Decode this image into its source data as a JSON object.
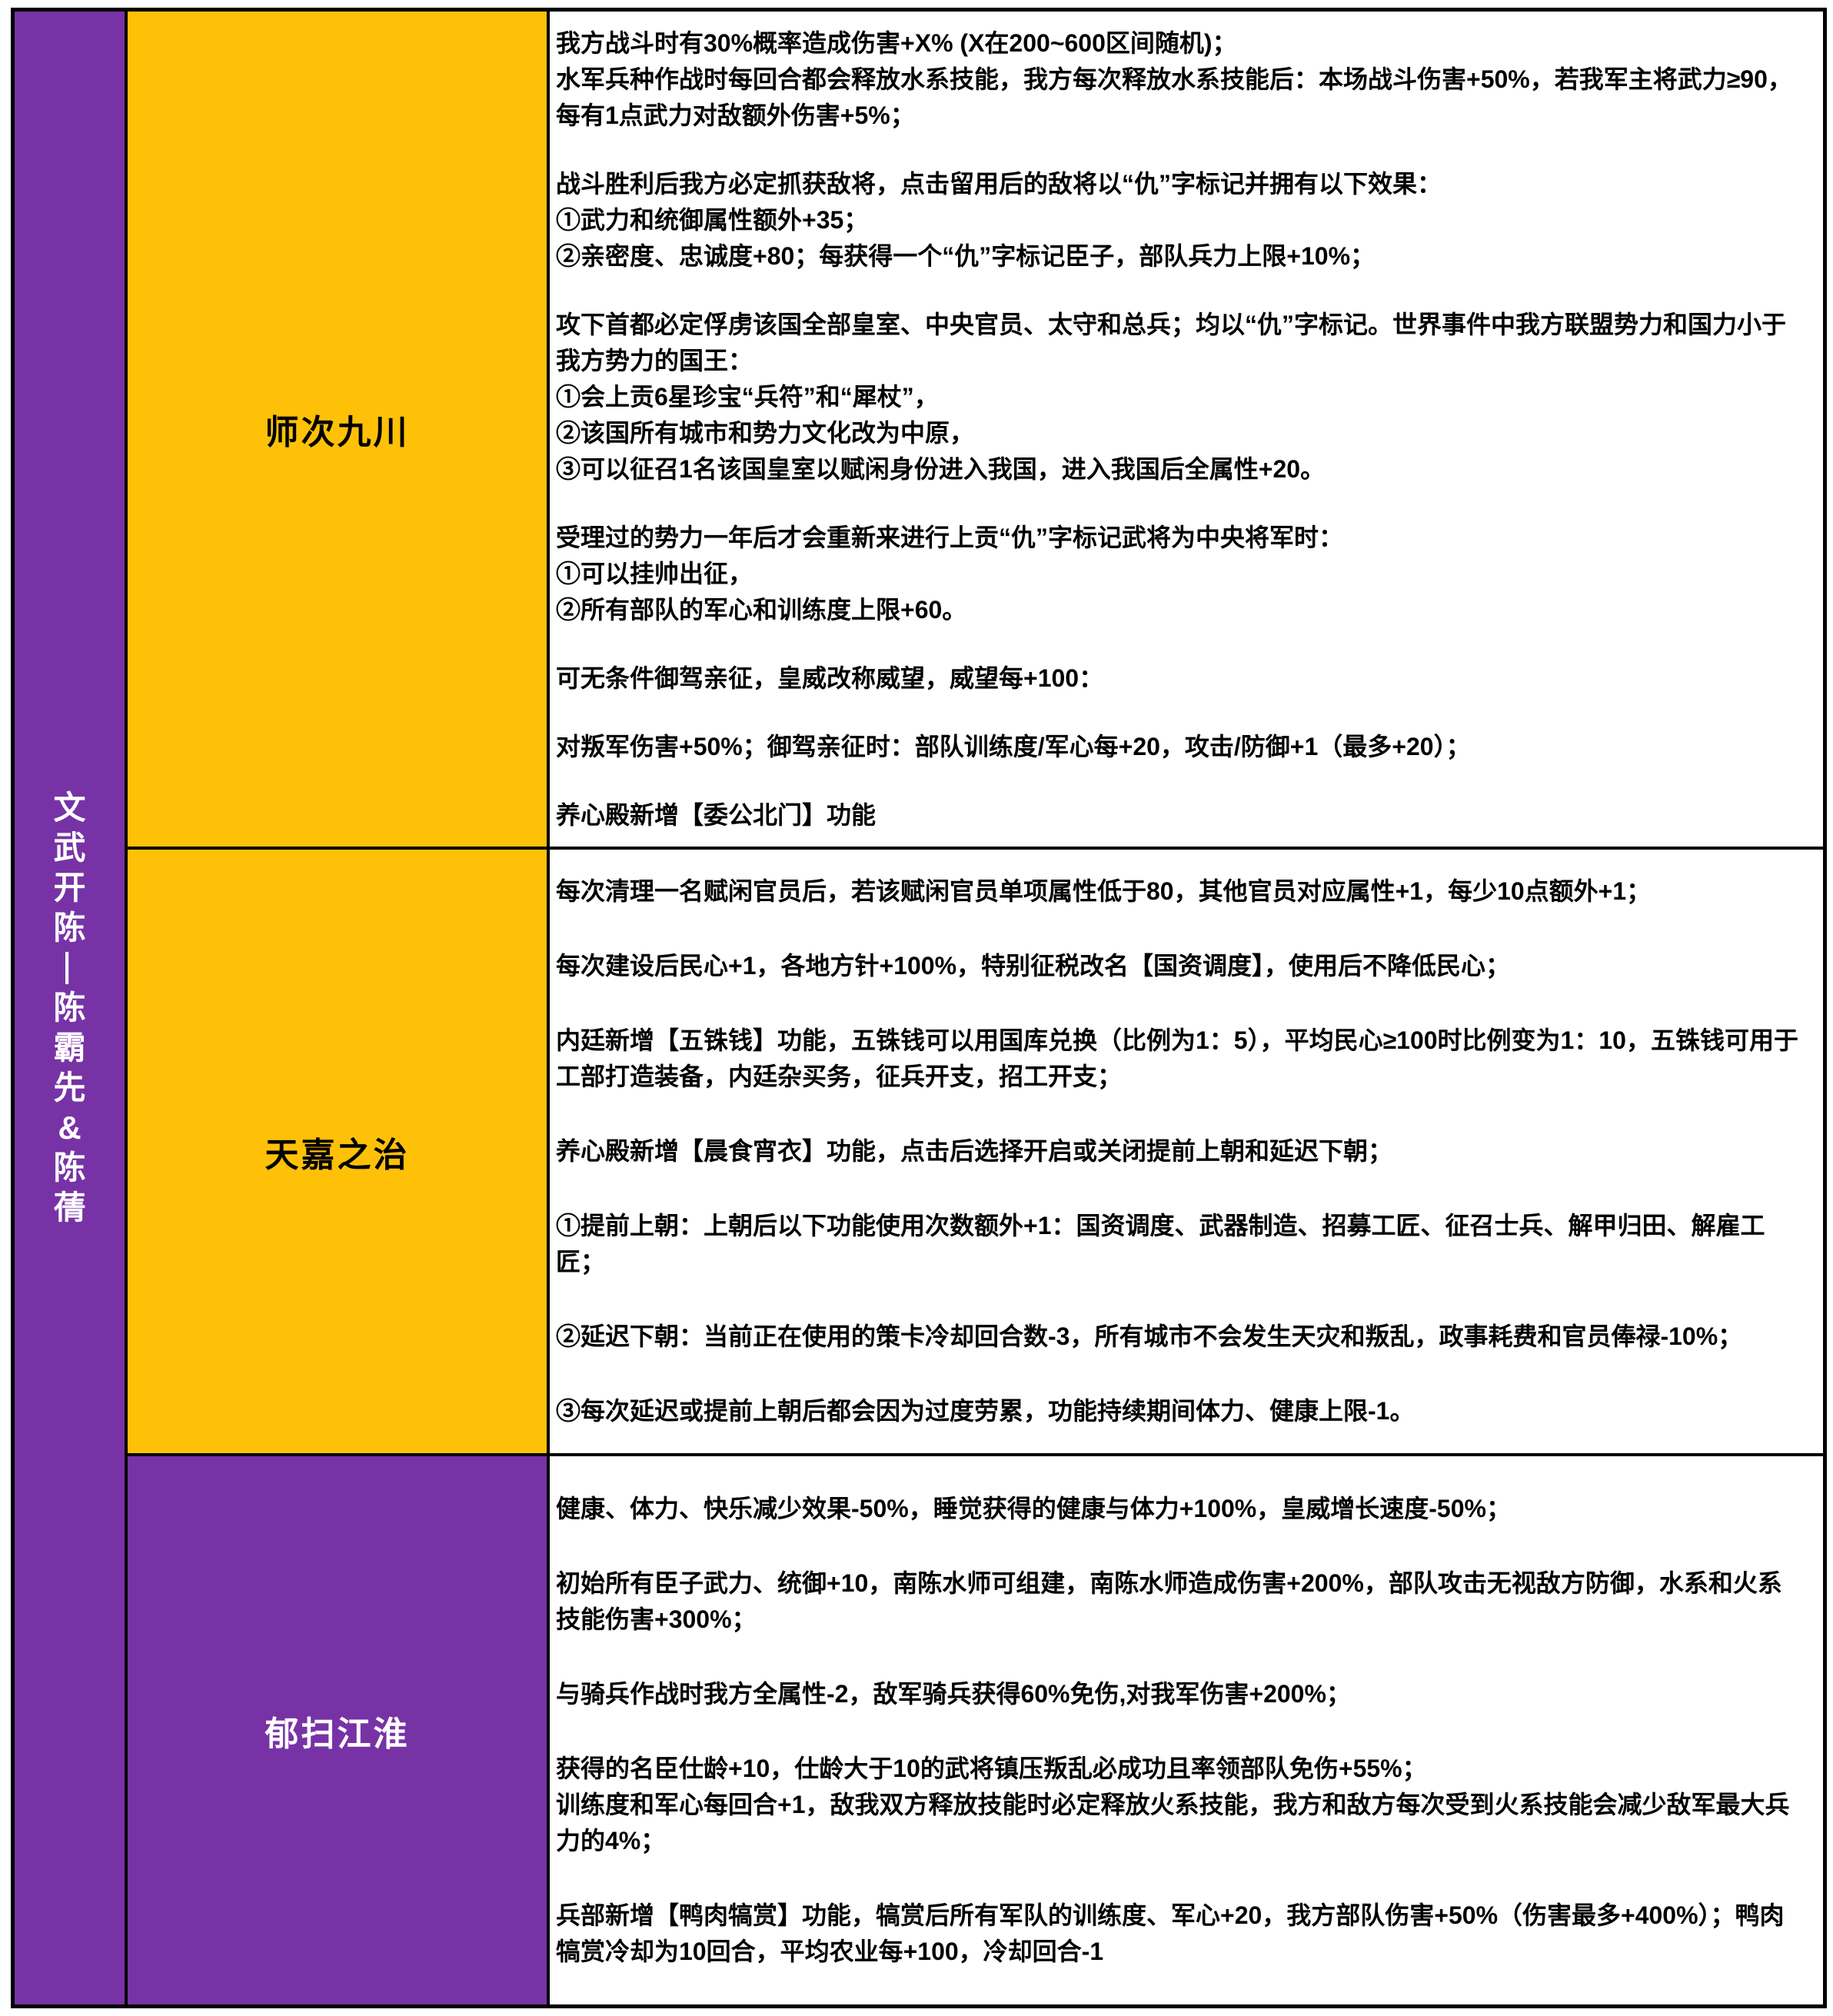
{
  "colors": {
    "purple": "#7733A6",
    "yellow": "#FFC107",
    "border": "#000000",
    "content_background": "#FFFFFF",
    "vertical_title_text": "#FFFFFF",
    "yellow_label_text": "#000000",
    "purple_label_text": "#FFFFFF"
  },
  "sidebar": {
    "title": "文武开陈—陈霸先&陈蒨"
  },
  "rows": [
    {
      "label": "师次九川",
      "label_style": "yellow",
      "paragraphs": [
        [
          "我方战斗时有30%概率造成伤害+X% (X在200~600区间随机)；",
          "水军兵种作战时每回合都会释放水系技能，我方每次释放水系技能后：本场战斗伤害+50%，若我军主将武力≥90，每有1点武力对敌额外伤害+5%；"
        ],
        [
          "战斗胜利后我方必定抓获敌将，点击留用后的敌将以“仇”字标记并拥有以下效果：",
          "①武力和统御属性额外+35；",
          "②亲密度、忠诚度+80；每获得一个“仇”字标记臣子，部队兵力上限+10%；"
        ],
        [
          "攻下首都必定俘虏该国全部皇室、中央官员、太守和总兵；均以“仇”字标记。世界事件中我方联盟势力和国力小于我方势力的国王：",
          "①会上贡6星珍宝“兵符”和“犀杖”，",
          "②该国所有城市和势力文化改为中原，",
          "③可以征召1名该国皇室以赋闲身份进入我国，进入我国后全属性+20。"
        ],
        [
          "受理过的势力一年后才会重新来进行上贡“仇”字标记武将为中央将军时：",
          "①可以挂帅出征，",
          "②所有部队的军心和训练度上限+60。"
        ],
        [
          "可无条件御驾亲征，皇威改称威望，威望每+100："
        ],
        [
          "对叛军伤害+50%；御驾亲征时：部队训练度/军心每+20，攻击/防御+1（最多+20）；"
        ],
        [
          "养心殿新增【委公北门】功能"
        ]
      ]
    },
    {
      "label": "天嘉之治",
      "label_style": "yellow",
      "paragraphs": [
        [
          "每次清理一名赋闲官员后，若该赋闲官员单项属性低于80，其他官员对应属性+1，每少10点额外+1；"
        ],
        [
          "每次建设后民心+1，各地方针+100%，特别征税改名【国资调度】，使用后不降低民心；"
        ],
        [
          "内廷新增【五铢钱】功能，五铢钱可以用国库兑换（比例为1：5），平均民心≥100时比例变为1：10，五铢钱可用于工部打造装备，内廷杂买务，征兵开支，招工开支；"
        ],
        [
          "养心殿新增【晨食宵衣】功能，点击后选择开启或关闭提前上朝和延迟下朝；"
        ],
        [
          "①提前上朝：上朝后以下功能使用次数额外+1：国资调度、武器制造、招募工匠、征召士兵、解甲归田、解雇工匠；"
        ],
        [
          "②延迟下朝：当前正在使用的策卡冷却回合数-3，所有城市不会发生天灾和叛乱，政事耗费和官员俸禄-10%；"
        ],
        [
          "③每次延迟或提前上朝后都会因为过度劳累，功能持续期间体力、健康上限-1。"
        ]
      ]
    },
    {
      "label": "郁扫江淮",
      "label_style": "purple",
      "paragraphs": [
        [
          "健康、体力、快乐减少效果-50%，睡觉获得的健康与体力+100%，皇威增长速度-50%；"
        ],
        [
          "初始所有臣子武力、统御+10，南陈水师可组建，南陈水师造成伤害+200%，部队攻击无视敌方防御，水系和火系技能伤害+300%；"
        ],
        [
          "与骑兵作战时我方全属性-2，敌军骑兵获得60%免伤,对我军伤害+200%；"
        ],
        [
          "获得的名臣仕龄+10，仕龄大于10的武将镇压叛乱必成功且率领部队免伤+55%；",
          "训练度和军心每回合+1，敌我双方释放技能时必定释放火系技能，我方和敌方每次受到火系技能会减少敌军最大兵力的4%；"
        ],
        [
          "兵部新增【鸭肉犒赏】功能，犒赏后所有军队的训练度、军心+20，我方部队伤害+50%（伤害最多+400%）；鸭肉犒赏冷却为10回合，平均农业每+100，冷却回合-1"
        ]
      ]
    }
  ]
}
